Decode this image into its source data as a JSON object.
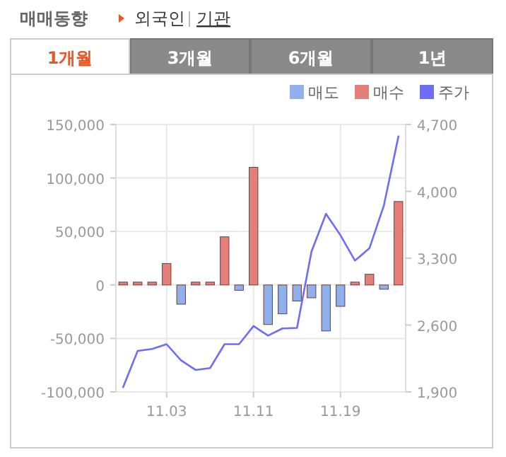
{
  "chart_data": {
    "type": "bar",
    "title": "매매동향",
    "annotations": [
      "외국인",
      "기관",
      "1개월",
      "3개월",
      "6개월",
      "1년"
    ],
    "categories": [
      null,
      null,
      null,
      "11.03",
      null,
      null,
      null,
      null,
      null,
      "11.11",
      null,
      null,
      null,
      null,
      null,
      "11.19",
      null,
      null,
      null,
      null
    ],
    "series": [
      {
        "name": "매도",
        "color": "#8fb0ea",
        "values": [
          null,
          null,
          null,
          null,
          -18000,
          null,
          null,
          null,
          -5000,
          null,
          -37000,
          -27000,
          -15000,
          -12000,
          -43000,
          -20000,
          null,
          null,
          -4000,
          null
        ]
      },
      {
        "name": "매수",
        "color": "#e57f7a",
        "values": [
          0,
          0,
          0,
          20000,
          null,
          0,
          0,
          45000,
          null,
          110000,
          null,
          null,
          null,
          null,
          null,
          null,
          0,
          10000,
          null,
          78000
        ]
      },
      {
        "name": "주가",
        "color": "#6f6cf5",
        "type": "line",
        "axis": "y2",
        "values": [
          1950,
          2330,
          2350,
          2400,
          2230,
          2130,
          2150,
          2400,
          2400,
          2590,
          2490,
          2565,
          2570,
          3370,
          3765,
          3540,
          3275,
          3405,
          3855,
          4575
        ]
      }
    ],
    "ylim": [
      -100000,
      150000
    ],
    "yticks": [
      {
        "value": -100000,
        "label": "-100,000"
      },
      {
        "value": -50000,
        "label": "-50,000"
      },
      0,
      {
        "value": 50000,
        "label": "50,000"
      },
      {
        "value": 100000,
        "label": "100,000"
      },
      {
        "value": 150000,
        "label": "150,000"
      }
    ],
    "y2lim": [
      1900,
      4700
    ],
    "y2ticks": [
      {
        "value": 1900,
        "label": "1,900"
      },
      {
        "value": 2600,
        "label": "2,600"
      },
      {
        "value": 3300,
        "label": "3,300"
      },
      {
        "value": 4000,
        "label": "4,000"
      },
      {
        "value": 4700,
        "label": "4,700"
      }
    ],
    "grid": true,
    "legend": "top right"
  }
}
